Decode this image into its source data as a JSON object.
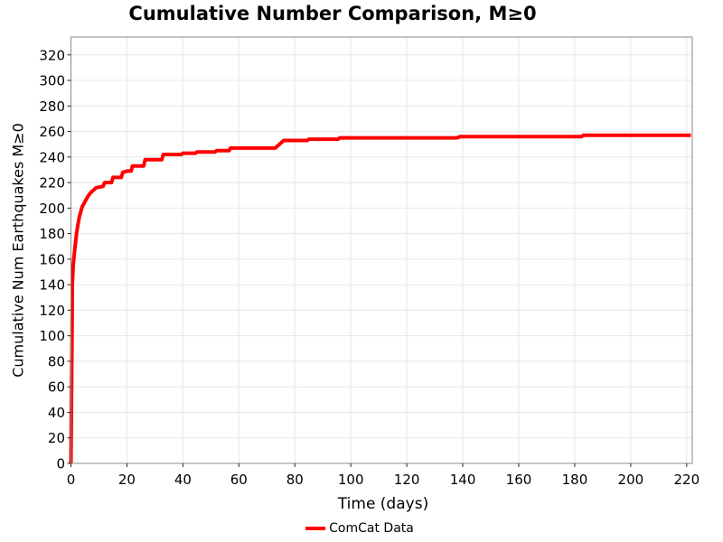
{
  "title": "Cumulative Number Comparison, M≥0",
  "chart_data": {
    "type": "line",
    "title": "Cumulative Number Comparison, M≥0",
    "xlabel": "Time (days)",
    "ylabel": "Cumulative Num Earthquakes M≥0",
    "xlim": [
      0,
      222
    ],
    "ylim": [
      0,
      334
    ],
    "xticks": [
      0,
      20,
      40,
      60,
      80,
      100,
      120,
      140,
      160,
      180,
      200,
      220
    ],
    "yticks": [
      0,
      20,
      40,
      60,
      80,
      100,
      120,
      140,
      160,
      180,
      200,
      220,
      240,
      260,
      280,
      300,
      320
    ],
    "grid": true,
    "grid_color": "#e7e7e7",
    "frame_color": "#8a8a8a",
    "tick_color": "#262626",
    "legend_position": "bottom-center",
    "series": [
      {
        "name": "ComCat Data",
        "color": "#ff0000",
        "line_width": 4,
        "points": [
          [
            0,
            0
          ],
          [
            0.4,
            100
          ],
          [
            0.5,
            140
          ],
          [
            0.8,
            155
          ],
          [
            1,
            160
          ],
          [
            1.5,
            170
          ],
          [
            2,
            180
          ],
          [
            2.5,
            187
          ],
          [
            3,
            193
          ],
          [
            3.5,
            197
          ],
          [
            4,
            201
          ],
          [
            5,
            205
          ],
          [
            6,
            209
          ],
          [
            7,
            212
          ],
          [
            8,
            214
          ],
          [
            9,
            216
          ],
          [
            11.5,
            217
          ],
          [
            12,
            220
          ],
          [
            14.5,
            220
          ],
          [
            15,
            224
          ],
          [
            18,
            224
          ],
          [
            18.5,
            228
          ],
          [
            20,
            229
          ],
          [
            21.5,
            229
          ],
          [
            22,
            233
          ],
          [
            26,
            233
          ],
          [
            26.5,
            238
          ],
          [
            32.5,
            238
          ],
          [
            33,
            242
          ],
          [
            39.5,
            242
          ],
          [
            40,
            243
          ],
          [
            44.5,
            243
          ],
          [
            45,
            244
          ],
          [
            51.5,
            244
          ],
          [
            52,
            245
          ],
          [
            56.5,
            245
          ],
          [
            57,
            247
          ],
          [
            73,
            247
          ],
          [
            76,
            253
          ],
          [
            84.5,
            253
          ],
          [
            85,
            254
          ],
          [
            95.5,
            254
          ],
          [
            96,
            255
          ],
          [
            138,
            255
          ],
          [
            139,
            256
          ],
          [
            182.5,
            256
          ],
          [
            183,
            257
          ],
          [
            221.5,
            257
          ]
        ]
      }
    ]
  },
  "legend": {
    "label": "ComCat Data",
    "color": "#ff0000"
  }
}
